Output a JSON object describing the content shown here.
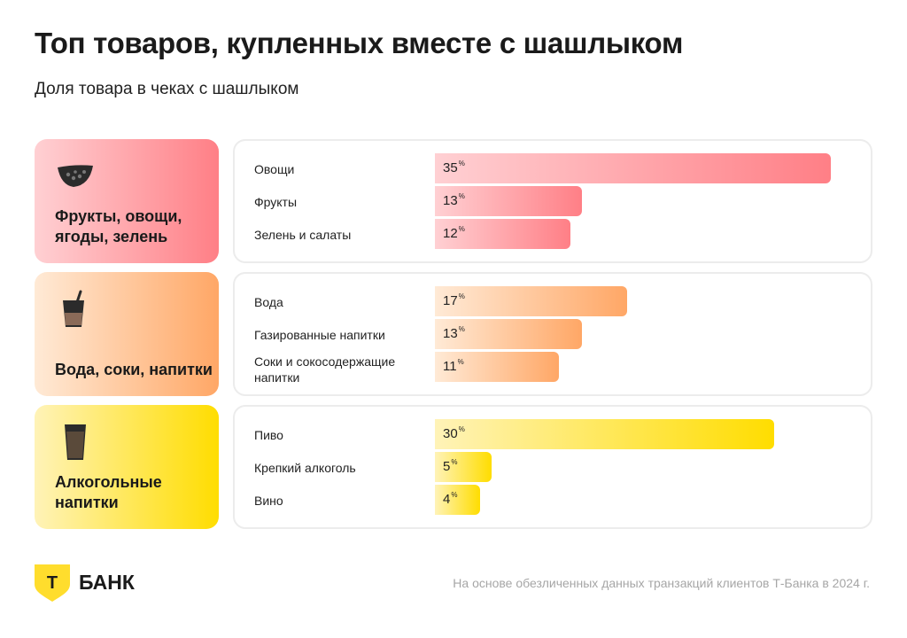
{
  "header": {
    "title": "Топ товаров, купленных вместе с шашлыком",
    "subtitle": "Доля товара в чеках с шашлыком"
  },
  "chart_data": {
    "type": "bar",
    "orientation": "horizontal",
    "title": "Топ товаров, купленных вместе с шашлыком",
    "subtitle": "Доля товара в чеках с шашлыком",
    "unit": "%",
    "groups": [
      {
        "name": "Фрукты, овощи, ягоды, зелень",
        "icon": "tomato-slice-icon",
        "color_start": "#ffd0d3",
        "color_end": "#ff7f86",
        "categories": [
          "Овощи",
          "Фрукты",
          "Зелень и салаты"
        ],
        "values": [
          35,
          13,
          12
        ]
      },
      {
        "name": "Вода, соки, напитки",
        "icon": "drink-glass-icon",
        "color_start": "#ffead6",
        "color_end": "#ffa766",
        "categories": [
          "Вода",
          "Газированные напитки",
          "Соки и сокосодержащие напитки"
        ],
        "values": [
          17,
          13,
          11
        ]
      },
      {
        "name": "Алкогольные напитки",
        "icon": "beer-glass-icon",
        "color_start": "#fff3b8",
        "color_end": "#ffdd00",
        "categories": [
          "Пиво",
          "Крепкий алкоголь",
          "Вино"
        ],
        "values": [
          30,
          5,
          4
        ]
      }
    ],
    "xlim": [
      0,
      35
    ]
  },
  "footer": {
    "brand": "БАНК",
    "logo_letter": "Т",
    "note": "На основе обезличенных данных транзакций клиентов Т-Банка в 2024 г."
  },
  "colors": {
    "brand_yellow": "#ffdd2d",
    "text": "#1a1a1a",
    "muted": "#a6a6a6"
  }
}
